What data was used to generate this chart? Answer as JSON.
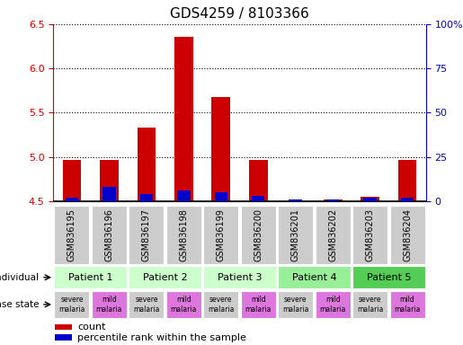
{
  "title": "GDS4259 / 8103366",
  "samples": [
    "GSM836195",
    "GSM836196",
    "GSM836197",
    "GSM836198",
    "GSM836199",
    "GSM836200",
    "GSM836201",
    "GSM836202",
    "GSM836203",
    "GSM836204"
  ],
  "count_values": [
    4.97,
    4.97,
    5.33,
    6.36,
    5.68,
    4.97,
    4.5,
    4.52,
    4.55,
    4.97
  ],
  "percentile_values": [
    2,
    8,
    4,
    6,
    5,
    3,
    1,
    1,
    2,
    2
  ],
  "ylim_left": [
    4.5,
    6.5
  ],
  "ylim_right": [
    0,
    100
  ],
  "yticks_left": [
    4.5,
    5.0,
    5.5,
    6.0,
    6.5
  ],
  "yticks_right": [
    0,
    25,
    50,
    75,
    100
  ],
  "ytick_labels_right": [
    "0",
    "25",
    "50",
    "75",
    "100%"
  ],
  "patients": [
    {
      "label": "Patient 1",
      "cols": [
        0,
        1
      ],
      "color": "#ccffcc"
    },
    {
      "label": "Patient 2",
      "cols": [
        2,
        3
      ],
      "color": "#ccffcc"
    },
    {
      "label": "Patient 3",
      "cols": [
        4,
        5
      ],
      "color": "#ccffcc"
    },
    {
      "label": "Patient 4",
      "cols": [
        6,
        7
      ],
      "color": "#99ee99"
    },
    {
      "label": "Patient 5",
      "cols": [
        8,
        9
      ],
      "color": "#55cc55"
    }
  ],
  "disease_states": [
    {
      "label": "severe\nmalaria",
      "col": 0,
      "color": "#cccccc"
    },
    {
      "label": "mild\nmalaria",
      "col": 1,
      "color": "#dd77dd"
    },
    {
      "label": "severe\nmalaria",
      "col": 2,
      "color": "#cccccc"
    },
    {
      "label": "mild\nmalaria",
      "col": 3,
      "color": "#dd77dd"
    },
    {
      "label": "severe\nmalaria",
      "col": 4,
      "color": "#cccccc"
    },
    {
      "label": "mild\nmalaria",
      "col": 5,
      "color": "#dd77dd"
    },
    {
      "label": "severe\nmalaria",
      "col": 6,
      "color": "#cccccc"
    },
    {
      "label": "mild\nmalaria",
      "col": 7,
      "color": "#dd77dd"
    },
    {
      "label": "severe\nmalaria",
      "col": 8,
      "color": "#cccccc"
    },
    {
      "label": "mild\nmalaria",
      "col": 9,
      "color": "#dd77dd"
    }
  ],
  "bar_color": "#cc0000",
  "percentile_color": "#0000cc",
  "bar_width": 0.5,
  "percentile_bar_width": 0.35,
  "legend_count_color": "#cc0000",
  "legend_percentile_color": "#0000cc",
  "background_color": "#ffffff",
  "sample_box_color": "#cccccc",
  "left_axis_color": "#cc0000",
  "right_axis_color": "#0000cc",
  "title_fontsize": 11,
  "tick_fontsize": 8,
  "sample_fontsize": 7
}
